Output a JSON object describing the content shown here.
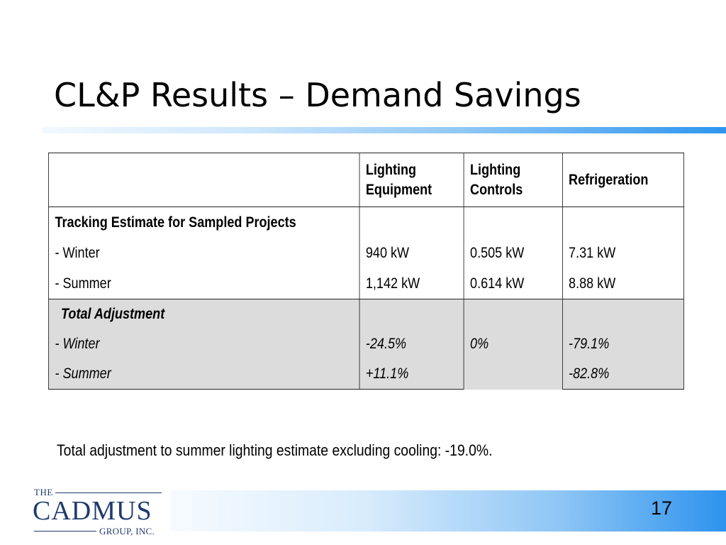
{
  "slide": {
    "title": "CL&P Results – Demand Savings",
    "page_number": "17",
    "footnote": "Total adjustment to summer lighting estimate excluding cooling: -19.0%."
  },
  "table": {
    "headers": [
      "",
      "Lighting Equipment",
      "Lighting Controls",
      "Refrigeration"
    ],
    "tracking": {
      "heading": "Tracking Estimate for Sampled Projects",
      "rows": [
        {
          "label": "- Winter",
          "lighting_equipment": "940 kW",
          "lighting_controls": "0.505 kW",
          "refrigeration": "7.31 kW"
        },
        {
          "label": "- Summer",
          "lighting_equipment": "1,142 kW",
          "lighting_controls": "0.614 kW",
          "refrigeration": "8.88 kW"
        }
      ]
    },
    "adjustment": {
      "heading": "Total Adjustment",
      "lighting_controls": "0%",
      "rows": [
        {
          "label": "- Winter",
          "lighting_equipment": "-24.5%",
          "refrigeration": "-79.1%"
        },
        {
          "label": "- Summer",
          "lighting_equipment": "+11.1%",
          "refrigeration": "-82.8%"
        }
      ]
    }
  },
  "logo": {
    "the": "THE",
    "name": "CADMUS",
    "group": "GROUP, INC."
  },
  "colors": {
    "accent_blue": "#2f95ee",
    "logo_navy": "#1f3b6e",
    "adjustment_shading": "#dcdcdc"
  }
}
